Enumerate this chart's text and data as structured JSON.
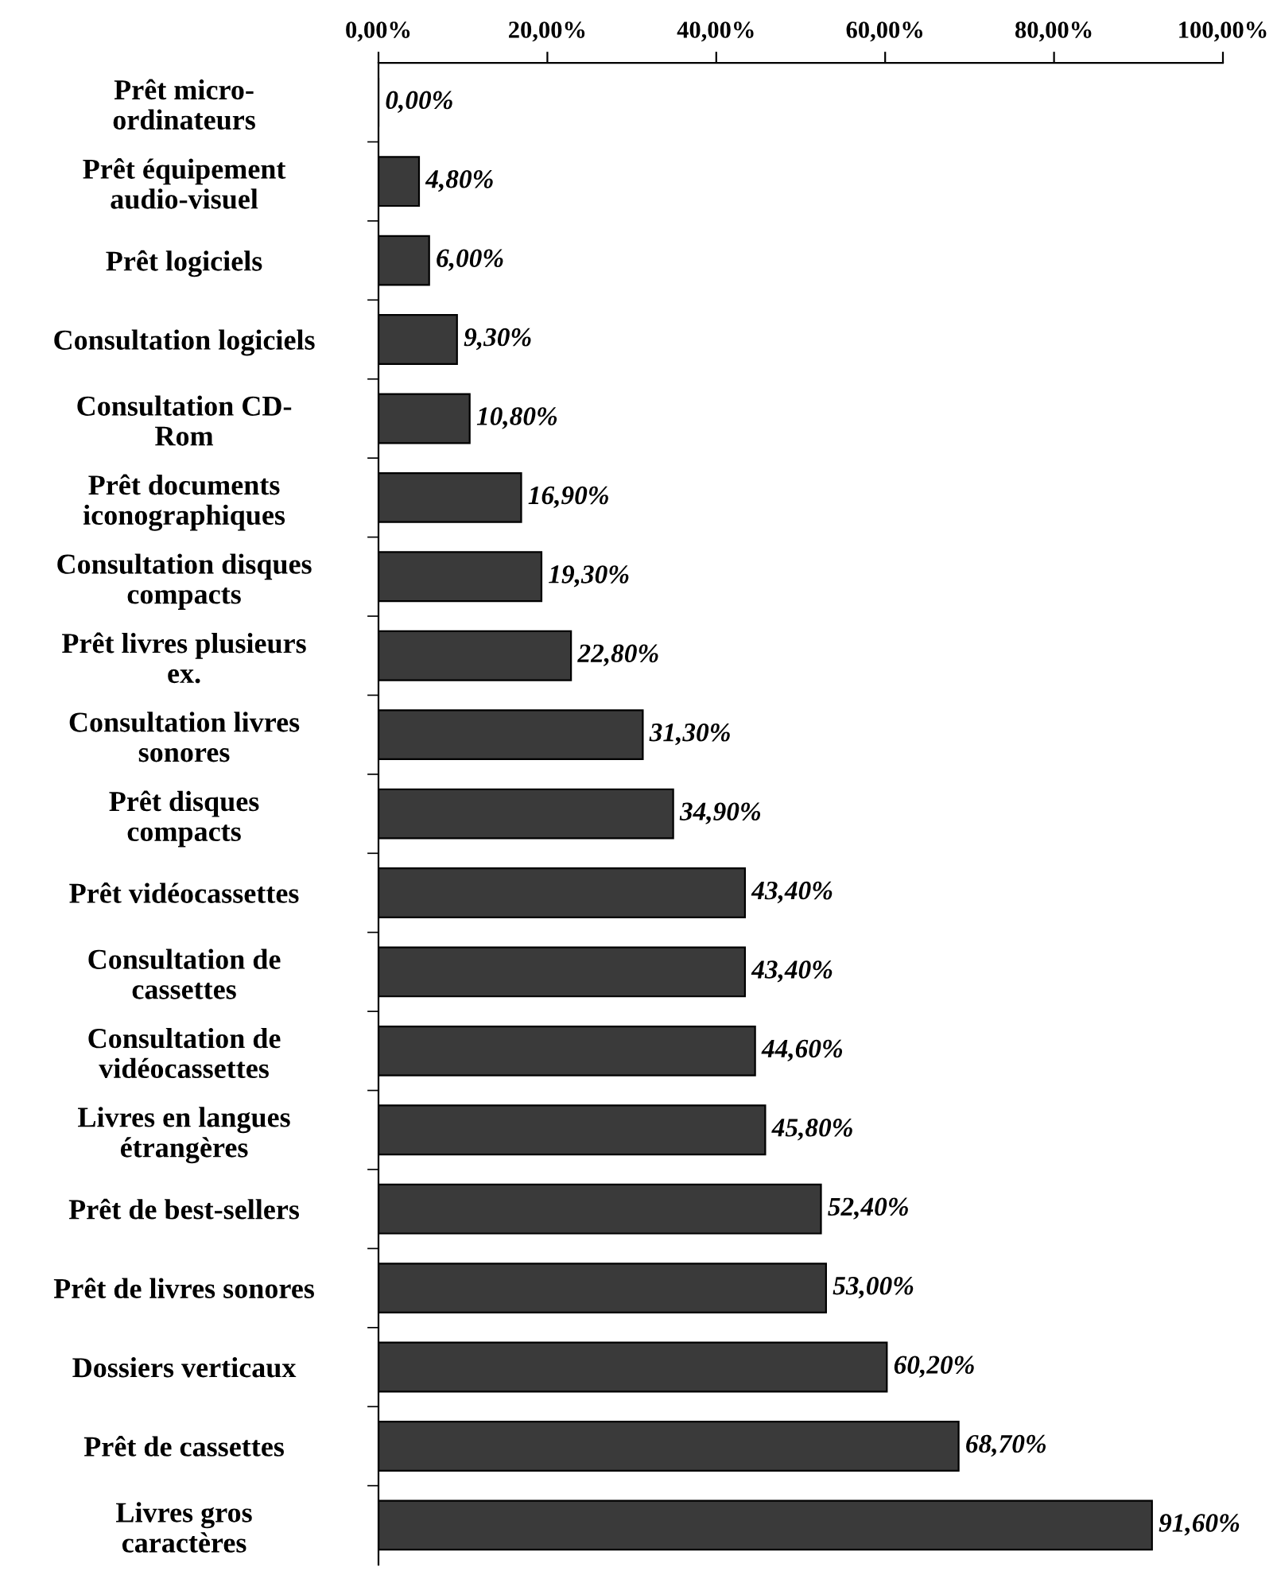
{
  "chart_data": {
    "type": "bar",
    "orientation": "horizontal",
    "categories": [
      "Prêt micro-\nordinateurs",
      "Prêt équipement\naudio-visuel",
      "Prêt logiciels",
      "Consultation logiciels",
      "Consultation CD-\nRom",
      "Prêt documents\niconographiques",
      "Consultation disques\ncompacts",
      "Prêt livres plusieurs\nex.",
      "Consultation livres\nsonores",
      "Prêt disques\ncompacts",
      "Prêt vidéocassettes",
      "Consultation de\ncassettes",
      "Consultation de\nvidéocassettes",
      "Livres en langues\nétrangères",
      "Prêt de best-sellers",
      "Prêt de livres sonores",
      "Dossiers verticaux",
      "Prêt de cassettes",
      "Livres gros\ncaractères"
    ],
    "values": [
      0.0,
      4.8,
      6.0,
      9.3,
      10.8,
      16.9,
      19.3,
      22.8,
      31.3,
      34.9,
      43.4,
      43.4,
      44.6,
      45.8,
      52.4,
      53.0,
      60.2,
      68.7,
      91.6
    ],
    "value_labels": [
      "0,00%",
      "4,80%",
      "6,00%",
      "9,30%",
      "10,80%",
      "16,90%",
      "19,30%",
      "22,80%",
      "31,30%",
      "34,90%",
      "43,40%",
      "43,40%",
      "44,60%",
      "45,80%",
      "52,40%",
      "53,00%",
      "60,20%",
      "68,70%",
      "91,60%"
    ],
    "color": "#3a3a3a",
    "xlim": [
      0,
      100
    ],
    "xticks": [
      {
        "value": 0,
        "label": "0,00%"
      },
      {
        "value": 20,
        "label": "20,00%"
      },
      {
        "value": 40,
        "label": "40,00%"
      },
      {
        "value": 60,
        "label": "60,00%"
      },
      {
        "value": 80,
        "label": "80,00%"
      },
      {
        "value": 100,
        "label": "100,00%"
      }
    ],
    "grid": false,
    "legend": false
  }
}
